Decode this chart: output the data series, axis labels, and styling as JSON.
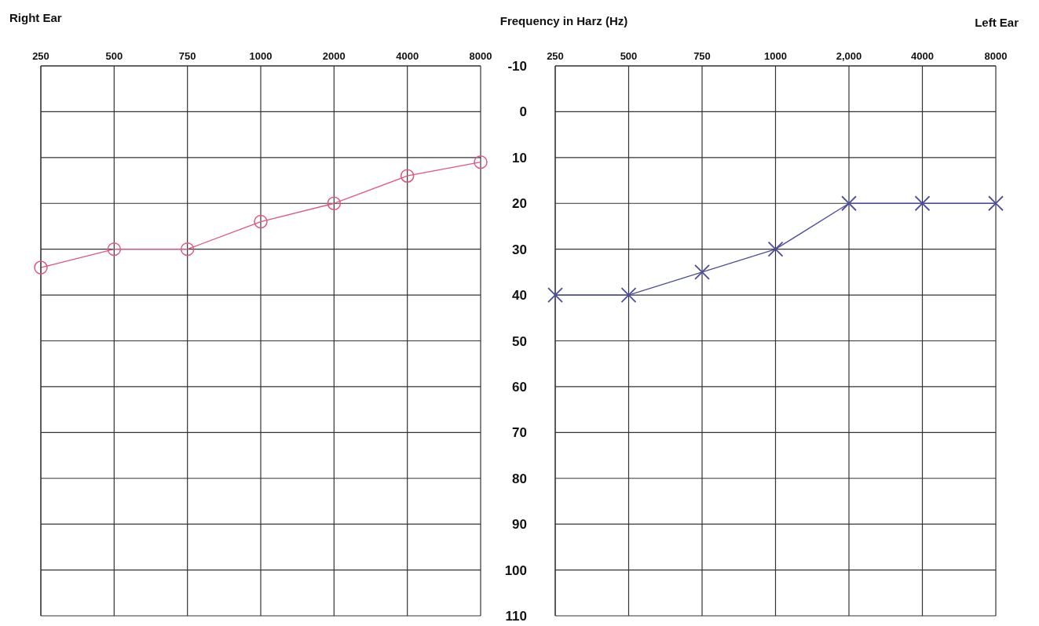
{
  "chart_data": [
    {
      "type": "line",
      "title": "Right Ear",
      "annotations": [
        "Frequency in Harz (Hz)"
      ],
      "categories": [
        "250",
        "500",
        "750",
        "1000",
        "2000",
        "4000",
        "8000"
      ],
      "series": [
        {
          "color": "#e0567e",
          "values": [
            34,
            30,
            30,
            24,
            20,
            14,
            11
          ]
        }
      ],
      "ylim": [
        110,
        -10
      ],
      "yticks": [
        -10,
        0,
        10,
        20,
        30,
        40,
        50,
        60,
        70,
        80,
        90,
        100,
        110
      ],
      "grid": true,
      "legend": false,
      "tick_labels": "x",
      "marker": "circle",
      "line_style": "solid"
    },
    {
      "type": "line",
      "title": "Left Ear",
      "categories": [
        "250",
        "500",
        "750",
        "1000",
        "2,000",
        "4000",
        "8000"
      ],
      "series": [
        {
          "color": "#4e4d9c",
          "values": [
            40,
            40,
            35,
            30,
            20,
            20,
            20
          ]
        }
      ],
      "ylim": [
        110,
        -10
      ],
      "yticks": [
        -10,
        0,
        10,
        20,
        30,
        40,
        50,
        60,
        70,
        80,
        90,
        100,
        110
      ],
      "grid": true,
      "legend": false,
      "marker": "cross",
      "line_style": "solid"
    }
  ]
}
